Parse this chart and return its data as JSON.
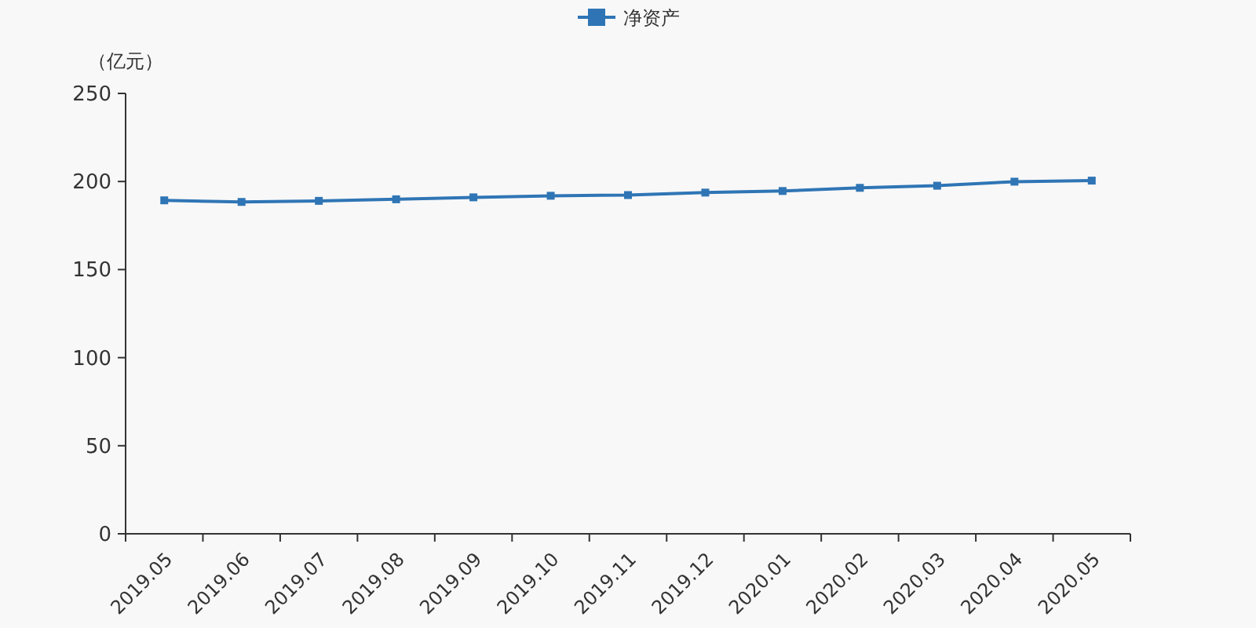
{
  "chart_data": {
    "type": "line",
    "ylabel": "（亿元）",
    "categories": [
      "2019.05",
      "2019.06",
      "2019.07",
      "2019.08",
      "2019.09",
      "2019.10",
      "2019.11",
      "2019.12",
      "2020.01",
      "2020.02",
      "2020.03",
      "2020.04",
      "2020.05"
    ],
    "series": [
      {
        "name": "净资产",
        "color": "#2f75b5",
        "values": [
          189.3,
          188.4,
          189.0,
          189.9,
          191.0,
          191.9,
          192.3,
          193.7,
          194.6,
          196.4,
          197.6,
          199.9,
          200.5
        ]
      }
    ],
    "ylim": [
      0,
      250
    ],
    "yticks": [
      0,
      50,
      100,
      150,
      200,
      250
    ],
    "legend": "top",
    "marker": "square"
  }
}
